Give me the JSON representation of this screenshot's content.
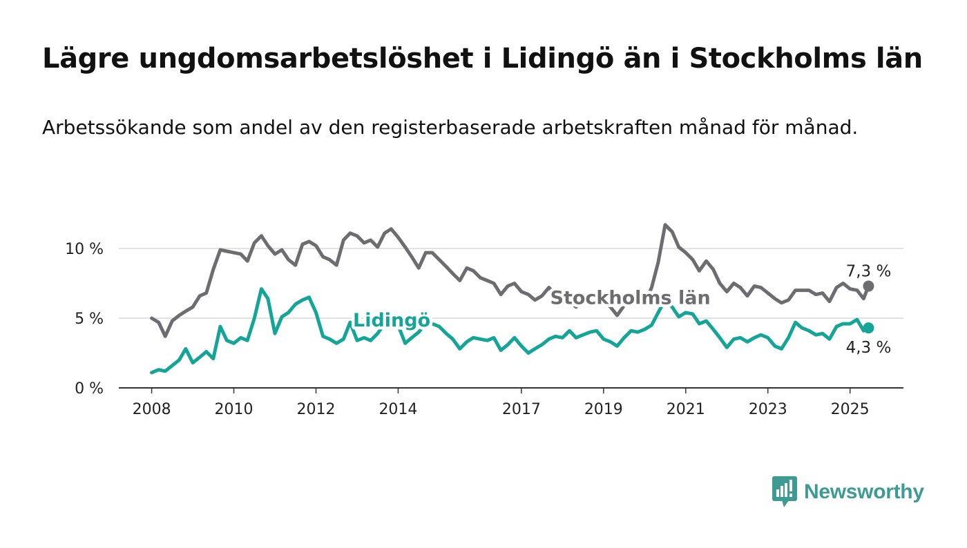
{
  "title": "Lägre ungdomsarbetslöshet i Lidingö än i Stockholms län",
  "subtitle": "Arbetssökande som andel av den registerbaserade arbetskraften månad för månad.",
  "brand": {
    "name": "Newsworthy",
    "icon": "bar-chart-speech-bubble-icon",
    "color": "#3d9b93"
  },
  "chart_data": {
    "type": "line",
    "x_unit": "year",
    "xlim": [
      2007.2,
      2026.3
    ],
    "ylim": [
      0,
      10
    ],
    "y_ticks": [
      {
        "value": 0,
        "label": "0 %"
      },
      {
        "value": 5,
        "label": "5 %"
      },
      {
        "value": 10,
        "label": "10 %"
      }
    ],
    "x_ticks": [
      {
        "value": 2008,
        "label": "2008"
      },
      {
        "value": 2010,
        "label": "2010"
      },
      {
        "value": 2012,
        "label": "2012"
      },
      {
        "value": 2014,
        "label": "2014"
      },
      {
        "value": 2017,
        "label": "2017"
      },
      {
        "value": 2019,
        "label": "2019"
      },
      {
        "value": 2021,
        "label": "2021"
      },
      {
        "value": 2023,
        "label": "2023"
      },
      {
        "value": 2025,
        "label": "2025"
      }
    ],
    "grid": "horizontal",
    "legend": "inline labels on lines",
    "series": [
      {
        "name": "Stockholms län",
        "color": "#6d6d71",
        "end_label": "7,3 %",
        "points": [
          [
            2008.0,
            5.0
          ],
          [
            2008.17,
            4.7
          ],
          [
            2008.33,
            3.7
          ],
          [
            2008.5,
            4.8
          ],
          [
            2008.67,
            5.2
          ],
          [
            2008.83,
            5.5
          ],
          [
            2009.0,
            5.8
          ],
          [
            2009.17,
            6.6
          ],
          [
            2009.33,
            6.8
          ],
          [
            2009.5,
            8.5
          ],
          [
            2009.67,
            9.9
          ],
          [
            2009.83,
            9.8
          ],
          [
            2010.0,
            9.7
          ],
          [
            2010.17,
            9.6
          ],
          [
            2010.33,
            9.1
          ],
          [
            2010.5,
            10.4
          ],
          [
            2010.67,
            10.9
          ],
          [
            2010.83,
            10.2
          ],
          [
            2011.0,
            9.6
          ],
          [
            2011.17,
            9.9
          ],
          [
            2011.33,
            9.2
          ],
          [
            2011.5,
            8.8
          ],
          [
            2011.67,
            10.3
          ],
          [
            2011.83,
            10.5
          ],
          [
            2012.0,
            10.2
          ],
          [
            2012.17,
            9.4
          ],
          [
            2012.33,
            9.2
          ],
          [
            2012.5,
            8.8
          ],
          [
            2012.67,
            10.6
          ],
          [
            2012.83,
            11.1
          ],
          [
            2013.0,
            10.9
          ],
          [
            2013.17,
            10.4
          ],
          [
            2013.33,
            10.6
          ],
          [
            2013.5,
            10.1
          ],
          [
            2013.67,
            11.1
          ],
          [
            2013.83,
            11.4
          ],
          [
            2014.0,
            10.8
          ],
          [
            2014.17,
            10.1
          ],
          [
            2014.33,
            9.4
          ],
          [
            2014.5,
            8.6
          ],
          [
            2014.67,
            9.7
          ],
          [
            2014.83,
            9.7
          ],
          [
            2015.0,
            9.2
          ],
          [
            2015.17,
            8.7
          ],
          [
            2015.33,
            8.2
          ],
          [
            2015.5,
            7.7
          ],
          [
            2015.67,
            8.6
          ],
          [
            2015.83,
            8.4
          ],
          [
            2016.0,
            7.9
          ],
          [
            2016.17,
            7.7
          ],
          [
            2016.33,
            7.5
          ],
          [
            2016.5,
            6.7
          ],
          [
            2016.67,
            7.3
          ],
          [
            2016.83,
            7.5
          ],
          [
            2017.0,
            6.9
          ],
          [
            2017.17,
            6.7
          ],
          [
            2017.33,
            6.3
          ],
          [
            2017.5,
            6.6
          ],
          [
            2017.67,
            7.2
          ],
          [
            2017.83,
            6.7
          ],
          [
            2018.0,
            6.4
          ],
          [
            2018.17,
            6.2
          ],
          [
            2018.33,
            5.8
          ],
          [
            2018.5,
            6.3
          ],
          [
            2018.67,
            6.6
          ],
          [
            2018.83,
            6.1
          ],
          [
            2019.0,
            6.2
          ],
          [
            2019.17,
            5.8
          ],
          [
            2019.33,
            5.2
          ],
          [
            2019.5,
            5.9
          ],
          [
            2019.67,
            6.2
          ],
          [
            2019.83,
            6.4
          ],
          [
            2020.0,
            6.1
          ],
          [
            2020.17,
            7.2
          ],
          [
            2020.33,
            9.0
          ],
          [
            2020.5,
            11.7
          ],
          [
            2020.67,
            11.2
          ],
          [
            2020.83,
            10.1
          ],
          [
            2021.0,
            9.7
          ],
          [
            2021.17,
            9.2
          ],
          [
            2021.33,
            8.4
          ],
          [
            2021.5,
            9.1
          ],
          [
            2021.67,
            8.5
          ],
          [
            2021.83,
            7.5
          ],
          [
            2022.0,
            6.9
          ],
          [
            2022.17,
            7.5
          ],
          [
            2022.33,
            7.2
          ],
          [
            2022.5,
            6.6
          ],
          [
            2022.67,
            7.3
          ],
          [
            2022.83,
            7.2
          ],
          [
            2023.0,
            6.8
          ],
          [
            2023.17,
            6.4
          ],
          [
            2023.33,
            6.1
          ],
          [
            2023.5,
            6.3
          ],
          [
            2023.67,
            7.0
          ],
          [
            2023.83,
            7.0
          ],
          [
            2024.0,
            7.0
          ],
          [
            2024.17,
            6.7
          ],
          [
            2024.33,
            6.8
          ],
          [
            2024.5,
            6.2
          ],
          [
            2024.67,
            7.2
          ],
          [
            2024.83,
            7.5
          ],
          [
            2025.0,
            7.1
          ],
          [
            2025.17,
            7.0
          ],
          [
            2025.33,
            6.4
          ],
          [
            2025.45,
            7.3
          ]
        ]
      },
      {
        "name": "Lidingö",
        "color": "#13a597",
        "end_label": "4,3 %",
        "points": [
          [
            2008.0,
            1.1
          ],
          [
            2008.17,
            1.3
          ],
          [
            2008.33,
            1.2
          ],
          [
            2008.5,
            1.6
          ],
          [
            2008.67,
            2.0
          ],
          [
            2008.83,
            2.8
          ],
          [
            2009.0,
            1.8
          ],
          [
            2009.17,
            2.2
          ],
          [
            2009.33,
            2.6
          ],
          [
            2009.5,
            2.1
          ],
          [
            2009.67,
            4.4
          ],
          [
            2009.83,
            3.4
          ],
          [
            2010.0,
            3.2
          ],
          [
            2010.17,
            3.6
          ],
          [
            2010.33,
            3.4
          ],
          [
            2010.5,
            5.0
          ],
          [
            2010.67,
            7.1
          ],
          [
            2010.83,
            6.4
          ],
          [
            2011.0,
            3.9
          ],
          [
            2011.17,
            5.1
          ],
          [
            2011.33,
            5.4
          ],
          [
            2011.5,
            6.0
          ],
          [
            2011.67,
            6.3
          ],
          [
            2011.83,
            6.5
          ],
          [
            2012.0,
            5.4
          ],
          [
            2012.17,
            3.7
          ],
          [
            2012.33,
            3.5
          ],
          [
            2012.5,
            3.2
          ],
          [
            2012.67,
            3.5
          ],
          [
            2012.83,
            4.7
          ],
          [
            2013.0,
            3.4
          ],
          [
            2013.17,
            3.6
          ],
          [
            2013.33,
            3.4
          ],
          [
            2013.5,
            3.9
          ],
          [
            2013.67,
            4.6
          ],
          [
            2013.83,
            4.7
          ],
          [
            2014.0,
            4.5
          ],
          [
            2014.17,
            3.2
          ],
          [
            2014.33,
            3.6
          ],
          [
            2014.5,
            4.0
          ],
          [
            2014.67,
            4.6
          ],
          [
            2014.83,
            4.6
          ],
          [
            2015.0,
            4.4
          ],
          [
            2015.17,
            3.9
          ],
          [
            2015.33,
            3.5
          ],
          [
            2015.5,
            2.8
          ],
          [
            2015.67,
            3.3
          ],
          [
            2015.83,
            3.6
          ],
          [
            2016.0,
            3.5
          ],
          [
            2016.17,
            3.4
          ],
          [
            2016.33,
            3.6
          ],
          [
            2016.5,
            2.7
          ],
          [
            2016.67,
            3.1
          ],
          [
            2016.83,
            3.6
          ],
          [
            2017.0,
            3.0
          ],
          [
            2017.17,
            2.5
          ],
          [
            2017.33,
            2.8
          ],
          [
            2017.5,
            3.1
          ],
          [
            2017.67,
            3.5
          ],
          [
            2017.83,
            3.7
          ],
          [
            2018.0,
            3.6
          ],
          [
            2018.17,
            4.1
          ],
          [
            2018.33,
            3.6
          ],
          [
            2018.5,
            3.8
          ],
          [
            2018.67,
            4.0
          ],
          [
            2018.83,
            4.1
          ],
          [
            2019.0,
            3.5
          ],
          [
            2019.17,
            3.3
          ],
          [
            2019.33,
            3.0
          ],
          [
            2019.5,
            3.6
          ],
          [
            2019.67,
            4.1
          ],
          [
            2019.83,
            4.0
          ],
          [
            2020.0,
            4.2
          ],
          [
            2020.17,
            4.5
          ],
          [
            2020.33,
            5.4
          ],
          [
            2020.5,
            6.3
          ],
          [
            2020.67,
            5.8
          ],
          [
            2020.83,
            5.1
          ],
          [
            2021.0,
            5.4
          ],
          [
            2021.17,
            5.3
          ],
          [
            2021.33,
            4.6
          ],
          [
            2021.5,
            4.8
          ],
          [
            2021.67,
            4.2
          ],
          [
            2021.83,
            3.6
          ],
          [
            2022.0,
            2.9
          ],
          [
            2022.17,
            3.5
          ],
          [
            2022.33,
            3.6
          ],
          [
            2022.5,
            3.3
          ],
          [
            2022.67,
            3.6
          ],
          [
            2022.83,
            3.8
          ],
          [
            2023.0,
            3.6
          ],
          [
            2023.17,
            3.0
          ],
          [
            2023.33,
            2.8
          ],
          [
            2023.5,
            3.6
          ],
          [
            2023.67,
            4.7
          ],
          [
            2023.83,
            4.3
          ],
          [
            2024.0,
            4.1
          ],
          [
            2024.17,
            3.8
          ],
          [
            2024.33,
            3.9
          ],
          [
            2024.5,
            3.5
          ],
          [
            2024.67,
            4.4
          ],
          [
            2024.83,
            4.6
          ],
          [
            2025.0,
            4.6
          ],
          [
            2025.17,
            4.9
          ],
          [
            2025.33,
            4.1
          ],
          [
            2025.45,
            4.3
          ]
        ]
      }
    ]
  }
}
